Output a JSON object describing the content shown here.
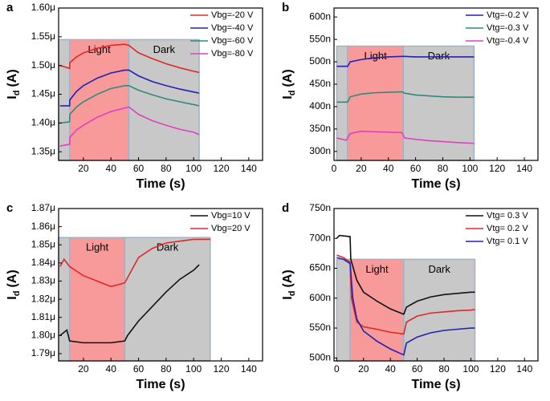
{
  "chart_data": [
    {
      "type": "line",
      "panel": "a",
      "xlabel": "Time (s)",
      "ylabel": {
        "main": "I",
        "sub": "d",
        "unit": "(A)"
      },
      "xlim": [
        2,
        150
      ],
      "xticks": [
        20,
        40,
        60,
        80,
        100,
        120,
        140
      ],
      "ylim": [
        1.335e-06,
        1.6e-06
      ],
      "yticks": [
        {
          "value": 1.35e-06,
          "label": "1.35μ"
        },
        {
          "value": 1.4e-06,
          "label": "1.40μ"
        },
        {
          "value": 1.45e-06,
          "label": "1.45μ"
        },
        {
          "value": 1.5e-06,
          "label": "1.50μ"
        },
        {
          "value": 1.55e-06,
          "label": "1.55μ"
        },
        {
          "value": 1.6e-06,
          "label": "1.60μ"
        }
      ],
      "legend": "upper right",
      "regions": [
        {
          "x": [
            2,
            10
          ],
          "y": [
            1.335e-06,
            1.545e-06
          ],
          "color": "#c8c8c8"
        },
        {
          "label": "Light",
          "x": [
            10,
            53
          ],
          "y": [
            1.335e-06,
            1.545e-06
          ],
          "color": "#f89a9a"
        },
        {
          "label": "Dark",
          "x": [
            53,
            104
          ],
          "y": [
            1.335e-06,
            1.545e-06
          ],
          "color": "#c8c8c8"
        }
      ],
      "series": [
        {
          "name": "Vbg=-20 V",
          "color": "#e02828",
          "x": [
            3,
            10,
            10.1,
            15,
            20,
            30,
            40,
            50,
            53,
            60,
            70,
            80,
            90,
            100,
            104
          ],
          "values": [
            1.5e-06,
            1.495e-06,
            1.505e-06,
            1.515e-06,
            1.522e-06,
            1.53e-06,
            1.535e-06,
            1.537e-06,
            1.535e-06,
            1.522e-06,
            1.512e-06,
            1.503e-06,
            1.496e-06,
            1.49e-06,
            1.488e-06
          ]
        },
        {
          "name": "Vbg=-40 V",
          "color": "#2222b0",
          "x": [
            3,
            10,
            10.1,
            15,
            20,
            30,
            40,
            50,
            53,
            60,
            70,
            80,
            90,
            100,
            104
          ],
          "values": [
            1.43e-06,
            1.43e-06,
            1.44e-06,
            1.455e-06,
            1.465e-06,
            1.478e-06,
            1.487e-06,
            1.492e-06,
            1.492e-06,
            1.482e-06,
            1.472e-06,
            1.465e-06,
            1.459e-06,
            1.454e-06,
            1.452e-06
          ]
        },
        {
          "name": "Vbg=-60 V",
          "color": "#2e8b7a",
          "x": [
            3,
            10,
            10.1,
            15,
            20,
            30,
            40,
            50,
            53,
            60,
            70,
            80,
            90,
            100,
            104
          ],
          "values": [
            1.4e-06,
            1.402e-06,
            1.415e-06,
            1.428e-06,
            1.437e-06,
            1.45e-06,
            1.46e-06,
            1.465e-06,
            1.465e-06,
            1.457e-06,
            1.449e-06,
            1.442e-06,
            1.437e-06,
            1.432e-06,
            1.43e-06
          ]
        },
        {
          "name": "Vbg=-80 V",
          "color": "#e040c0",
          "x": [
            3,
            10,
            10.1,
            15,
            20,
            30,
            40,
            50,
            53,
            60,
            70,
            80,
            90,
            100,
            104
          ],
          "values": [
            1.36e-06,
            1.363e-06,
            1.375e-06,
            1.388e-06,
            1.396e-06,
            1.41e-06,
            1.42e-06,
            1.426e-06,
            1.428e-06,
            1.415e-06,
            1.404e-06,
            1.396e-06,
            1.389e-06,
            1.384e-06,
            1.38e-06
          ]
        }
      ]
    },
    {
      "type": "line",
      "panel": "b",
      "xlabel": "Time (s)",
      "ylabel": {
        "main": "I",
        "sub": "d",
        "unit": "(A)"
      },
      "xlim": [
        0,
        150
      ],
      "xticks": [
        0,
        20,
        40,
        60,
        80,
        100,
        120,
        140
      ],
      "ylim": [
        2.8e-07,
        6.2e-07
      ],
      "yticks": [
        {
          "value": 3e-07,
          "label": "300n"
        },
        {
          "value": 3.5e-07,
          "label": "350n"
        },
        {
          "value": 4e-07,
          "label": "400n"
        },
        {
          "value": 4.5e-07,
          "label": "450n"
        },
        {
          "value": 5e-07,
          "label": "500n"
        },
        {
          "value": 5.5e-07,
          "label": "550n"
        },
        {
          "value": 6e-07,
          "label": "600n"
        }
      ],
      "legend": "upper right",
      "regions": [
        {
          "x": [
            2,
            10
          ],
          "y": [
            2.8e-07,
            5.35e-07
          ],
          "color": "#c8c8c8"
        },
        {
          "label": "Light",
          "x": [
            10,
            51
          ],
          "y": [
            2.8e-07,
            5.35e-07
          ],
          "color": "#f89a9a"
        },
        {
          "label": "Dark",
          "x": [
            51,
            103
          ],
          "y": [
            2.8e-07,
            5.35e-07
          ],
          "color": "#c8c8c8"
        }
      ],
      "series": [
        {
          "name": "Vtg=-0.2 V",
          "color": "#2222b0",
          "x": [
            2,
            10,
            12,
            20,
            30,
            40,
            50,
            52,
            60,
            80,
            103
          ],
          "values": [
            4.9e-07,
            4.9e-07,
            5e-07,
            5.05e-07,
            5.09e-07,
            5.11e-07,
            5.12e-07,
            5.12e-07,
            5.11e-07,
            5.11e-07,
            5.11e-07
          ]
        },
        {
          "name": "Vtg=-0.3 V",
          "color": "#2e8b7a",
          "x": [
            2,
            10,
            12,
            20,
            30,
            40,
            50,
            52,
            60,
            70,
            80,
            90,
            103
          ],
          "values": [
            4.1e-07,
            4.1e-07,
            4.22e-07,
            4.28e-07,
            4.31e-07,
            4.32e-07,
            4.33e-07,
            4.3e-07,
            4.26e-07,
            4.24e-07,
            4.22e-07,
            4.21e-07,
            4.21e-07
          ]
        },
        {
          "name": "Vtg=-0.4 V",
          "color": "#e040c0",
          "x": [
            2,
            9,
            12,
            20,
            30,
            40,
            50,
            52,
            60,
            70,
            80,
            90,
            103
          ],
          "values": [
            3.3e-07,
            3.25e-07,
            3.4e-07,
            3.45e-07,
            3.44e-07,
            3.43e-07,
            3.42e-07,
            3.3e-07,
            3.27e-07,
            3.24e-07,
            3.22e-07,
            3.2e-07,
            3.18e-07
          ]
        }
      ]
    },
    {
      "type": "line",
      "panel": "c",
      "xlabel": "Time (s)",
      "ylabel": {
        "main": "I",
        "sub": "d",
        "unit": "(A)"
      },
      "xlim": [
        2,
        150
      ],
      "xticks": [
        20,
        40,
        60,
        80,
        100,
        120,
        140
      ],
      "ylim": [
        1.786e-06,
        1.87e-06
      ],
      "yticks": [
        {
          "value": 1.79e-06,
          "label": "1.79μ"
        },
        {
          "value": 1.8e-06,
          "label": "1.80μ"
        },
        {
          "value": 1.81e-06,
          "label": "1.81μ"
        },
        {
          "value": 1.82e-06,
          "label": "1.82μ"
        },
        {
          "value": 1.83e-06,
          "label": "1.83μ"
        },
        {
          "value": 1.84e-06,
          "label": "1.84μ"
        },
        {
          "value": 1.85e-06,
          "label": "1.85μ"
        },
        {
          "value": 1.86e-06,
          "label": "1.86μ"
        },
        {
          "value": 1.87e-06,
          "label": "1.87μ"
        }
      ],
      "legend": "upper right",
      "regions": [
        {
          "x": [
            2,
            10
          ],
          "y": [
            1.786e-06,
            1.854e-06
          ],
          "color": "#c8c8c8"
        },
        {
          "label": "Light",
          "x": [
            10,
            50
          ],
          "y": [
            1.786e-06,
            1.854e-06
          ],
          "color": "#f89a9a"
        },
        {
          "label": "Dark",
          "x": [
            50,
            112
          ],
          "y": [
            1.786e-06,
            1.854e-06
          ],
          "color": "#c8c8c8"
        }
      ],
      "series": [
        {
          "name": "Vbg=10 V",
          "color": "#111111",
          "x": [
            3,
            8,
            10,
            20,
            30,
            40,
            50,
            52,
            60,
            70,
            80,
            90,
            100,
            104
          ],
          "values": [
            1.8e-06,
            1.803e-06,
            1.797e-06,
            1.796e-06,
            1.796e-06,
            1.796e-06,
            1.797e-06,
            1.8e-06,
            1.808e-06,
            1.816e-06,
            1.824e-06,
            1.831e-06,
            1.836e-06,
            1.839e-06
          ]
        },
        {
          "name": "Vbg=20 V",
          "color": "#e02828",
          "x": [
            3,
            6,
            10,
            20,
            30,
            40,
            50,
            55,
            60,
            70,
            80,
            90,
            100,
            112
          ],
          "values": [
            1.838e-06,
            1.842e-06,
            1.838e-06,
            1.833e-06,
            1.83e-06,
            1.827e-06,
            1.829e-06,
            1.836e-06,
            1.843e-06,
            1.848e-06,
            1.851e-06,
            1.852e-06,
            1.853e-06,
            1.853e-06
          ]
        }
      ]
    },
    {
      "type": "line",
      "panel": "d",
      "xlabel": "Time (s)",
      "ylabel": {
        "main": "I",
        "sub": "d",
        "unit": "(A)"
      },
      "xlim": [
        -2,
        150
      ],
      "xticks": [
        0,
        20,
        40,
        60,
        80,
        100,
        120,
        140
      ],
      "ylim": [
        4.95e-07,
        7.5e-07
      ],
      "yticks": [
        {
          "value": 5e-07,
          "label": "500n"
        },
        {
          "value": 5.5e-07,
          "label": "550n"
        },
        {
          "value": 6e-07,
          "label": "600n"
        },
        {
          "value": 6.5e-07,
          "label": "650n"
        },
        {
          "value": 7e-07,
          "label": "700n"
        },
        {
          "value": 7.5e-07,
          "label": "750n"
        }
      ],
      "legend": "upper right",
      "regions": [
        {
          "x": [
            0,
            10
          ],
          "y": [
            4.95e-07,
            6.65e-07
          ],
          "color": "#c8c8c8"
        },
        {
          "label": "Light",
          "x": [
            10,
            50
          ],
          "y": [
            4.95e-07,
            6.65e-07
          ],
          "color": "#f89a9a"
        },
        {
          "label": "Dark",
          "x": [
            50,
            103
          ],
          "y": [
            4.95e-07,
            6.65e-07
          ],
          "color": "#c8c8c8"
        }
      ],
      "series": [
        {
          "name": "Vtg= 0.3 V",
          "color": "#111111",
          "x": [
            0,
            2,
            10,
            10.5,
            15,
            20,
            30,
            40,
            50,
            52,
            60,
            70,
            80,
            90,
            100,
            103
          ],
          "values": [
            7e-07,
            7.05e-07,
            7.03e-07,
            6.65e-07,
            6.3e-07,
            6.1e-07,
            5.95e-07,
            5.82e-07,
            5.73e-07,
            5.85e-07,
            5.95e-07,
            6.02e-07,
            6.06e-07,
            6.08e-07,
            6.1e-07,
            6.1e-07
          ]
        },
        {
          "name": "Vtg= 0.2 V",
          "color": "#e02828",
          "x": [
            0,
            5,
            10,
            11,
            15,
            20,
            30,
            40,
            50,
            52,
            60,
            70,
            80,
            90,
            100,
            103
          ],
          "values": [
            6.72e-07,
            6.68e-07,
            6.6e-07,
            6e-07,
            5.6e-07,
            5.52e-07,
            5.48e-07,
            5.43e-07,
            5.4e-07,
            5.6e-07,
            5.7e-07,
            5.75e-07,
            5.77e-07,
            5.79e-07,
            5.8e-07,
            5.81e-07
          ]
        },
        {
          "name": "Vtg= 0.1 V",
          "color": "#2222b0",
          "x": [
            0,
            5,
            10,
            12,
            15,
            20,
            30,
            40,
            50,
            52,
            60,
            70,
            80,
            90,
            100,
            103
          ],
          "values": [
            6.68e-07,
            6.65e-07,
            6.58e-07,
            6e-07,
            5.65e-07,
            5.45e-07,
            5.28e-07,
            5.15e-07,
            5.05e-07,
            5.25e-07,
            5.35e-07,
            5.42e-07,
            5.46e-07,
            5.48e-07,
            5.5e-07,
            5.5e-07
          ]
        }
      ]
    }
  ]
}
